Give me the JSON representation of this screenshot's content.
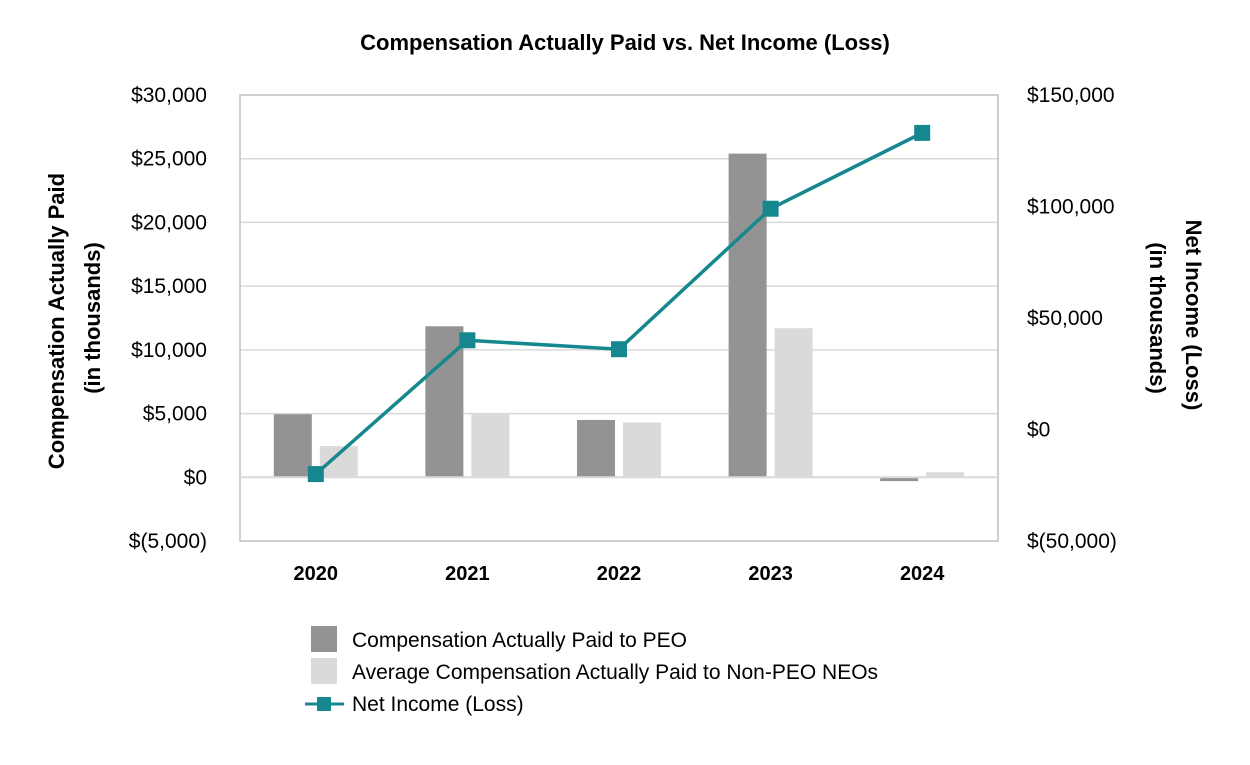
{
  "chart_data": {
    "type": "bar",
    "title": "Compensation Actually Paid vs. Net Income (Loss)",
    "categories": [
      "2020",
      "2021",
      "2022",
      "2023",
      "2024"
    ],
    "ylabel": [
      "Compensation Actually Paid",
      "(in thousands)"
    ],
    "y2label": [
      "Net Income (Loss)",
      "(in thousands)"
    ],
    "ylim": [
      -5000,
      30000
    ],
    "y2lim": [
      -50000,
      150000
    ],
    "yticks": [
      {
        "value": 30000,
        "label": "$30,000"
      },
      {
        "value": 25000,
        "label": "$25,000"
      },
      {
        "value": 20000,
        "label": "$20,000"
      },
      {
        "value": 15000,
        "label": "$15,000"
      },
      {
        "value": 10000,
        "label": "$10,000"
      },
      {
        "value": 5000,
        "label": "$5,000"
      },
      {
        "value": 0,
        "label": "$0"
      },
      {
        "value": -5000,
        "label": "$(5,000)"
      }
    ],
    "y2ticks": [
      {
        "value": 150000,
        "label": "$150,000"
      },
      {
        "value": 100000,
        "label": "$100,000"
      },
      {
        "value": 50000,
        "label": "$50,000"
      },
      {
        "value": 0,
        "label": "$0"
      },
      {
        "value": -50000,
        "label": "$(50,000)"
      }
    ],
    "grid": true,
    "legend_position": "bottom",
    "series": [
      {
        "name": "Compensation Actually Paid to PEO",
        "type": "bar",
        "axis": "left",
        "color": "#939393",
        "values": [
          4950,
          11850,
          4500,
          25400,
          -300
        ]
      },
      {
        "name": "Average Compensation Actually Paid to Non-PEO NEOs",
        "type": "bar",
        "axis": "left",
        "color": "#dadada",
        "values": [
          2450,
          4950,
          4300,
          11700,
          400
        ]
      },
      {
        "name": "Net Income (Loss)",
        "type": "line",
        "axis": "right",
        "color": "#15878f",
        "values": [
          -20000,
          40000,
          36000,
          99000,
          133000
        ]
      }
    ]
  }
}
